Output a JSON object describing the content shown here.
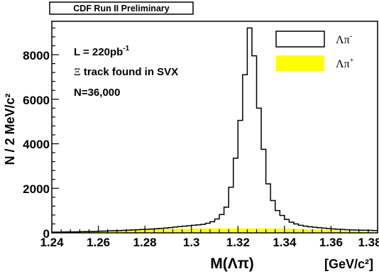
{
  "chart_data": {
    "type": "histogram",
    "banner": "CDF Run II Preliminary",
    "xlabel": "M(Λπ)",
    "xunit": "[GeV/c²]",
    "ylabel": "N / 2 MeV/c²",
    "xlim": [
      1.24,
      1.38
    ],
    "ylim": [
      0,
      9500
    ],
    "xticks": [
      "1.24",
      "1.26",
      "1.28",
      "1.3",
      "1.32",
      "1.34",
      "1.36",
      "1.38"
    ],
    "yticks": [
      "0",
      "2000",
      "4000",
      "6000",
      "8000"
    ],
    "annotations": {
      "lumi_main": "L = 220pb",
      "lumi_exp": "-1",
      "xi_symbol": "Ξ",
      "track_text": " track found in SVX",
      "count": "N=36,000"
    },
    "legend_placement": "top-right",
    "bin_edges_start": 1.24,
    "bin_width": 0.002,
    "series": [
      {
        "name": "Λπ-",
        "legend_base": "Λπ",
        "legend_sup": "-",
        "style": "outline",
        "color": "#000000",
        "values": [
          30,
          30,
          35,
          40,
          40,
          45,
          50,
          55,
          60,
          65,
          75,
          80,
          90,
          95,
          100,
          110,
          120,
          130,
          140,
          150,
          160,
          170,
          185,
          200,
          215,
          235,
          260,
          280,
          300,
          320,
          340,
          360,
          380,
          430,
          500,
          620,
          820,
          1150,
          2050,
          3350,
          5050,
          7100,
          9200,
          7950,
          5600,
          3750,
          2200,
          1450,
          1000,
          780,
          600,
          480,
          400,
          340,
          300,
          270,
          250,
          230,
          210,
          190,
          175,
          160,
          150,
          140,
          130,
          125,
          120,
          115,
          110,
          105
        ]
      },
      {
        "name": "Λπ+",
        "legend_base": "Λπ",
        "legend_sup": "+",
        "style": "filled",
        "color": "#ffff00",
        "values": [
          10,
          12,
          15,
          20,
          25,
          30,
          35,
          40,
          45,
          55,
          60,
          70,
          80,
          90,
          100,
          110,
          120,
          130,
          135,
          140,
          145,
          150,
          160,
          165,
          170,
          175,
          180,
          185,
          190,
          190,
          195,
          195,
          200,
          200,
          200,
          200,
          200,
          200,
          200,
          200,
          200,
          200,
          200,
          200,
          200,
          200,
          200,
          195,
          195,
          190,
          190,
          185,
          180,
          175,
          170,
          165,
          160,
          150,
          140,
          130,
          120,
          110,
          100,
          90,
          80,
          70,
          60,
          55,
          50,
          45
        ]
      }
    ]
  }
}
